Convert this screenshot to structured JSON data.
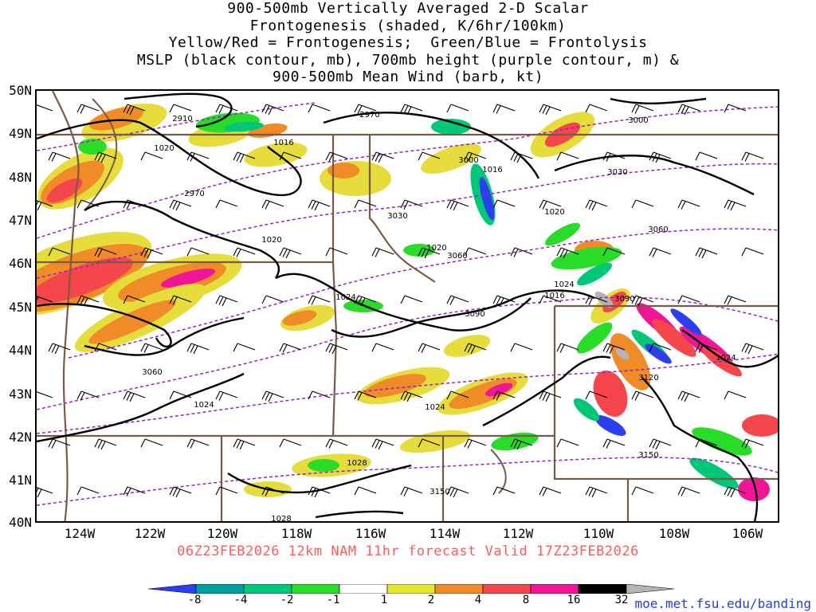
{
  "title": {
    "lines": [
      "900-500mb Vertically Averaged 2-D Scalar",
      "Frontogenesis (shaded, K/6hr/100km)",
      "Yellow/Red = Frontogenesis;  Green/Blue = Frontolysis",
      "MSLP (black contour, mb), 700mb height (purple contour, m) &",
      "900-500mb Mean Wind (barb, kt)"
    ]
  },
  "map": {
    "lat_labels": [
      "50N",
      "49N",
      "48N",
      "47N",
      "46N",
      "45N",
      "44N",
      "43N",
      "42N",
      "41N",
      "40N"
    ],
    "lon_labels": [
      "124W",
      "122W",
      "120W",
      "118W",
      "116W",
      "114W",
      "112W",
      "110W",
      "108W",
      "106W"
    ],
    "lat_range": [
      40,
      50
    ],
    "lon_range": [
      -125,
      -105
    ],
    "mslp_labels": [
      "1016",
      "1016",
      "1016",
      "1020",
      "1020",
      "1020",
      "1020",
      "1024",
      "1024",
      "1024",
      "1024",
      "1024",
      "1028",
      "1028"
    ],
    "height_labels": [
      "2910",
      "2970",
      "2970",
      "3000",
      "3000",
      "3030",
      "3030",
      "3060",
      "3060",
      "3060",
      "3090",
      "3090",
      "3120",
      "3150",
      "3150"
    ]
  },
  "forecast": {
    "text": "06Z23FEB2026 12km NAM 11hr forecast Valid 17Z23FEB2026"
  },
  "colorbar": {
    "labels": [
      "-8",
      "-4",
      "-2",
      "-1",
      "1",
      "2",
      "4",
      "8",
      "16",
      "32"
    ],
    "colors": [
      "#2d3df0",
      "#00a0a0",
      "#00c878",
      "#28dc28",
      "#ffffff",
      "#e6e632",
      "#f08c28",
      "#f5464b",
      "#f01496",
      "#000000",
      "#b4b4b4"
    ]
  },
  "colors": {
    "frontogenesis_weak": "#e6dc3c",
    "frontogenesis_mod": "#f08c28",
    "frontogenesis_strong": "#f5464b",
    "frontogenesis_vstrong": "#f01496",
    "frontolysis_weak": "#28dc28",
    "frontolysis_mod": "#00c878",
    "frontolysis_strong": "#00a0a0",
    "frontolysis_vstrong": "#2d3df0",
    "height_contour": "#9a20c8",
    "border": "#7a5a46",
    "mslp_contour": "#000000"
  },
  "credit": "moe.met.fsu.edu/banding"
}
